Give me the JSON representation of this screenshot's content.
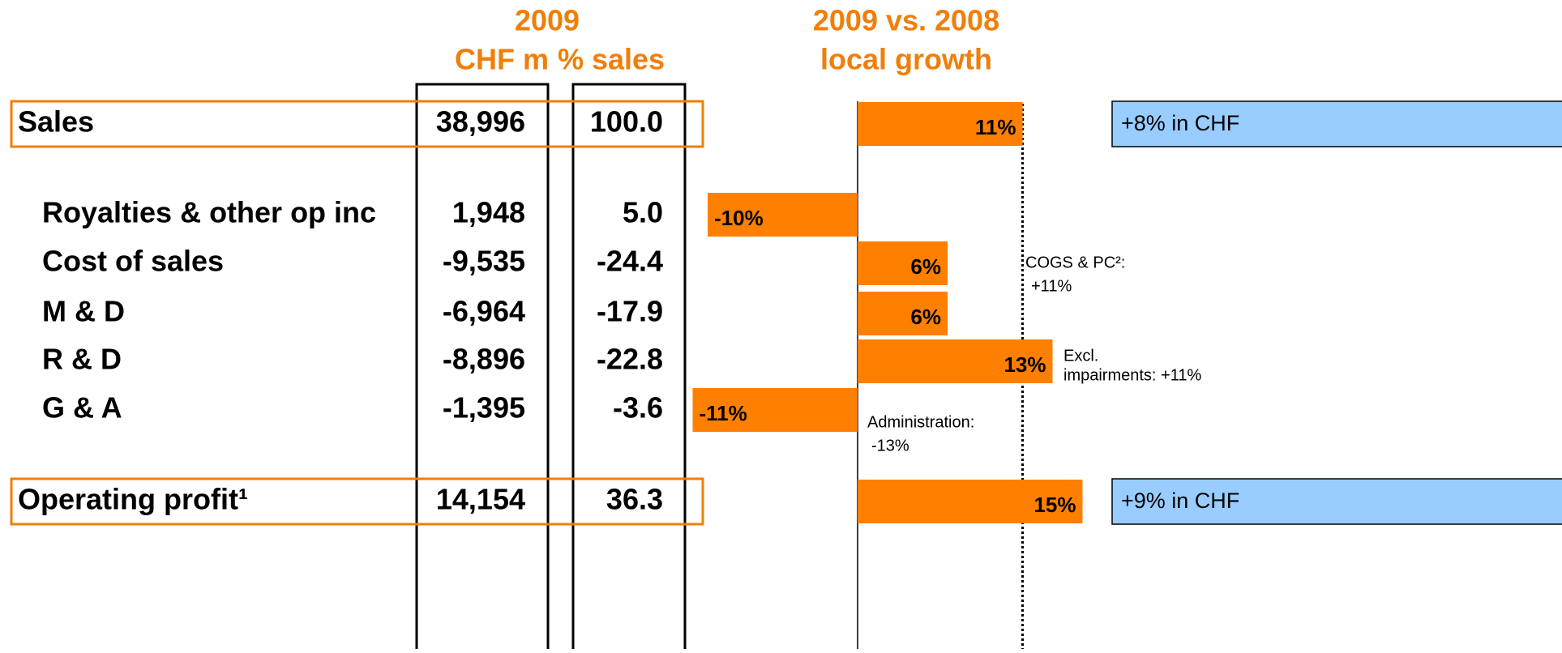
{
  "header": {
    "year": "2009",
    "chf": "CHF m",
    "pct": "% sales",
    "growth_title": "2009 vs. 2008",
    "growth_sub": "local growth"
  },
  "rows": [
    {
      "label": "Sales",
      "chf": "38,996",
      "pct": "100.0",
      "growth": 11,
      "growth_label": "11%",
      "highlight": true,
      "indent": false
    },
    {
      "label": "Royalties & other op inc",
      "chf": "1,948",
      "pct": "5.0",
      "growth": -10,
      "growth_label": "-10%",
      "highlight": false,
      "indent": true
    },
    {
      "label": "Cost of sales",
      "chf": "-9,535",
      "pct": "-24.4",
      "growth": 6,
      "growth_label": "6%",
      "highlight": false,
      "indent": true
    },
    {
      "label": "M & D",
      "chf": "-6,964",
      "pct": "-17.9",
      "growth": 6,
      "growth_label": "6%",
      "highlight": false,
      "indent": true
    },
    {
      "label": "R & D",
      "chf": "-8,896",
      "pct": "-22.8",
      "growth": 13,
      "growth_label": "13%",
      "highlight": false,
      "indent": true
    },
    {
      "label": "G & A",
      "chf": "-1,395",
      "pct": "-3.6",
      "growth": -11,
      "growth_label": "-11%",
      "highlight": false,
      "indent": true
    },
    {
      "label": "Operating profit¹",
      "chf": "14,154",
      "pct": "36.3",
      "growth": 15,
      "growth_label": "15%",
      "highlight": true,
      "indent": false
    }
  ],
  "chf_notes": [
    "+8% in CHF",
    "+9% in CHF"
  ],
  "annotations": {
    "cogs": [
      "COGS & PC²:",
      "+11%"
    ],
    "excl": [
      "Excl.",
      "impairments: +11%"
    ],
    "admin": [
      "Administration:",
      "-13%"
    ]
  }
}
